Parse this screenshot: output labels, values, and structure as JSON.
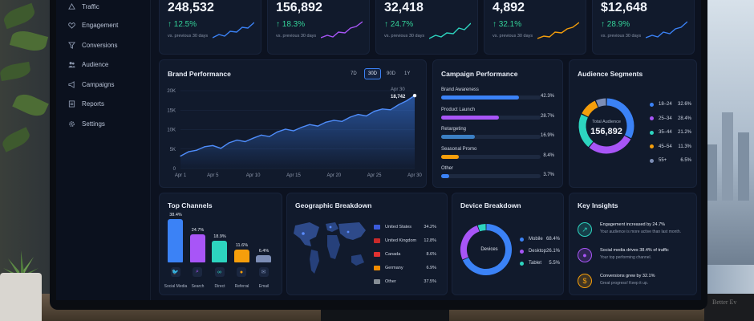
{
  "sidebar": {
    "items": [
      {
        "label": "Traffic",
        "icon": "traffic-icon"
      },
      {
        "label": "Engagement",
        "icon": "heart-icon"
      },
      {
        "label": "Conversions",
        "icon": "funnel-icon"
      },
      {
        "label": "Audience",
        "icon": "people-icon"
      },
      {
        "label": "Campaigns",
        "icon": "megaphone-icon"
      },
      {
        "label": "Reports",
        "icon": "report-icon"
      },
      {
        "label": "Settings",
        "icon": "gear-icon"
      }
    ]
  },
  "kpis": [
    {
      "value": "248,532",
      "delta": "↑ 12.5%",
      "sub": "vs. previous 30 days",
      "color": "#3b82f6"
    },
    {
      "value": "156,892",
      "delta": "↑ 18.3%",
      "sub": "vs. previous 30 days",
      "color": "#a855f7"
    },
    {
      "value": "32,418",
      "delta": "↑ 24.7%",
      "sub": "vs. previous 30 days",
      "color": "#2dd4bf"
    },
    {
      "value": "4,892",
      "delta": "↑ 32.1%",
      "sub": "vs. previous 30 days",
      "color": "#f59e0b"
    },
    {
      "value": "$12,648",
      "delta": "↑ 28.9%",
      "sub": "vs. previous 30 days",
      "color": "#3b82f6"
    }
  ],
  "brand": {
    "title": "Brand Performance",
    "ranges": [
      "7D",
      "30D",
      "90D",
      "1Y"
    ],
    "active_range": "30D",
    "tooltip_date": "Apr 30",
    "tooltip_value": "18,742"
  },
  "campaign": {
    "title": "Campaign Performance",
    "items": [
      {
        "label": "Brand Awareness",
        "pct": "42.3%",
        "value": 0.78,
        "color": "#3b82f6"
      },
      {
        "label": "Product Launch",
        "pct": "28.7%",
        "value": 0.58,
        "color": "#a855f7"
      },
      {
        "label": "Retargeting",
        "pct": "16.9%",
        "value": 0.34,
        "color": "#3b7fc4"
      },
      {
        "label": "Seasonal Promo",
        "pct": "8.4%",
        "value": 0.18,
        "color": "#f59e0b"
      },
      {
        "label": "Other",
        "pct": "3.7%",
        "value": 0.08,
        "color": "#3b82f6"
      }
    ]
  },
  "segments": {
    "title": "Audience Segments",
    "center_label": "Total Audience",
    "center_value": "156,892",
    "items": [
      {
        "label": "18–24",
        "pct": "32.6%",
        "color": "#3b82f6"
      },
      {
        "label": "25–34",
        "pct": "28.4%",
        "color": "#a855f7"
      },
      {
        "label": "35–44",
        "pct": "21.2%",
        "color": "#2dd4bf"
      },
      {
        "label": "45–54",
        "pct": "11.3%",
        "color": "#f59e0b"
      },
      {
        "label": "55+",
        "pct": "6.5%",
        "color": "#7c8db5"
      }
    ]
  },
  "channels": {
    "title": "Top Channels",
    "items": [
      {
        "label": "Social Media",
        "value": "38.4%",
        "num": 38.4,
        "color": "#3b82f6",
        "icon": "twitter-icon"
      },
      {
        "label": "Search",
        "value": "24.7%",
        "num": 24.7,
        "color": "#a855f7",
        "icon": "search-icon"
      },
      {
        "label": "Direct",
        "value": "18.9%",
        "num": 18.9,
        "color": "#2dd4bf",
        "icon": "link-icon"
      },
      {
        "label": "Referral",
        "value": "11.6%",
        "num": 11.6,
        "color": "#f59e0b",
        "icon": "people-icon"
      },
      {
        "label": "Email",
        "value": "6.4%",
        "num": 6.4,
        "color": "#7c8db5",
        "icon": "mail-icon"
      }
    ]
  },
  "geo": {
    "title": "Geographic Breakdown",
    "items": [
      {
        "label": "United States",
        "pct": "34.2%",
        "flag": "#3b5bdb"
      },
      {
        "label": "United Kingdom",
        "pct": "12.8%",
        "flag": "#c92a2a"
      },
      {
        "label": "Canada",
        "pct": "8.6%",
        "flag": "#e03131"
      },
      {
        "label": "Germany",
        "pct": "6.9%",
        "flag": "#f08c00"
      },
      {
        "label": "Other",
        "pct": "37.5%",
        "flag": "#868e96"
      }
    ]
  },
  "device": {
    "title": "Device Breakdown",
    "center_label": "Devices",
    "items": [
      {
        "label": "Mobile",
        "pct": "68.4%",
        "color": "#3b82f6"
      },
      {
        "label": "Desktop",
        "pct": "26.1%",
        "color": "#a855f7"
      },
      {
        "label": "Tablet",
        "pct": "5.5%",
        "color": "#2dd4bf"
      }
    ]
  },
  "insights": {
    "title": "Key Insights",
    "items": [
      {
        "title": "Engagement increased by 24.7%",
        "sub": "Your audience is more active than last month.",
        "icon": "trend-up-icon",
        "color": "#2dd4bf",
        "glyph": "↗"
      },
      {
        "title": "Social media drives 38.4% of traffic",
        "sub": "Your top performing channel.",
        "icon": "people-icon",
        "color": "#a855f7",
        "glyph": "●"
      },
      {
        "title": "Conversions grew by 32.1%",
        "sub": "Great progress! Keep it up.",
        "icon": "dollar-icon",
        "color": "#f59e0b",
        "glyph": "$"
      }
    ]
  },
  "mug_text": "Better Ev",
  "chart_data": {
    "type": "area",
    "x": [
      "Apr 1",
      "Apr 5",
      "Apr 10",
      "Apr 15",
      "Apr 20",
      "Apr 25",
      "Apr 30"
    ],
    "xlim": [
      1,
      30
    ],
    "y": [
      [
        1,
        3200
      ],
      [
        2,
        4300
      ],
      [
        3,
        4700
      ],
      [
        4,
        5600
      ],
      [
        5,
        5900
      ],
      [
        6,
        5200
      ],
      [
        7,
        6600
      ],
      [
        8,
        7300
      ],
      [
        9,
        6900
      ],
      [
        10,
        7800
      ],
      [
        11,
        8600
      ],
      [
        12,
        8200
      ],
      [
        13,
        9400
      ],
      [
        14,
        10100
      ],
      [
        15,
        9700
      ],
      [
        16,
        10600
      ],
      [
        17,
        11300
      ],
      [
        18,
        10900
      ],
      [
        19,
        11900
      ],
      [
        20,
        12400
      ],
      [
        21,
        12100
      ],
      [
        22,
        13200
      ],
      [
        23,
        13900
      ],
      [
        24,
        13500
      ],
      [
        25,
        14700
      ],
      [
        26,
        15300
      ],
      [
        27,
        15100
      ],
      [
        28,
        16400
      ],
      [
        29,
        17400
      ],
      [
        30,
        18742
      ]
    ],
    "yticks": [
      "0",
      "5K",
      "10K",
      "15K",
      "20K"
    ],
    "ylim": [
      0,
      20000
    ]
  }
}
